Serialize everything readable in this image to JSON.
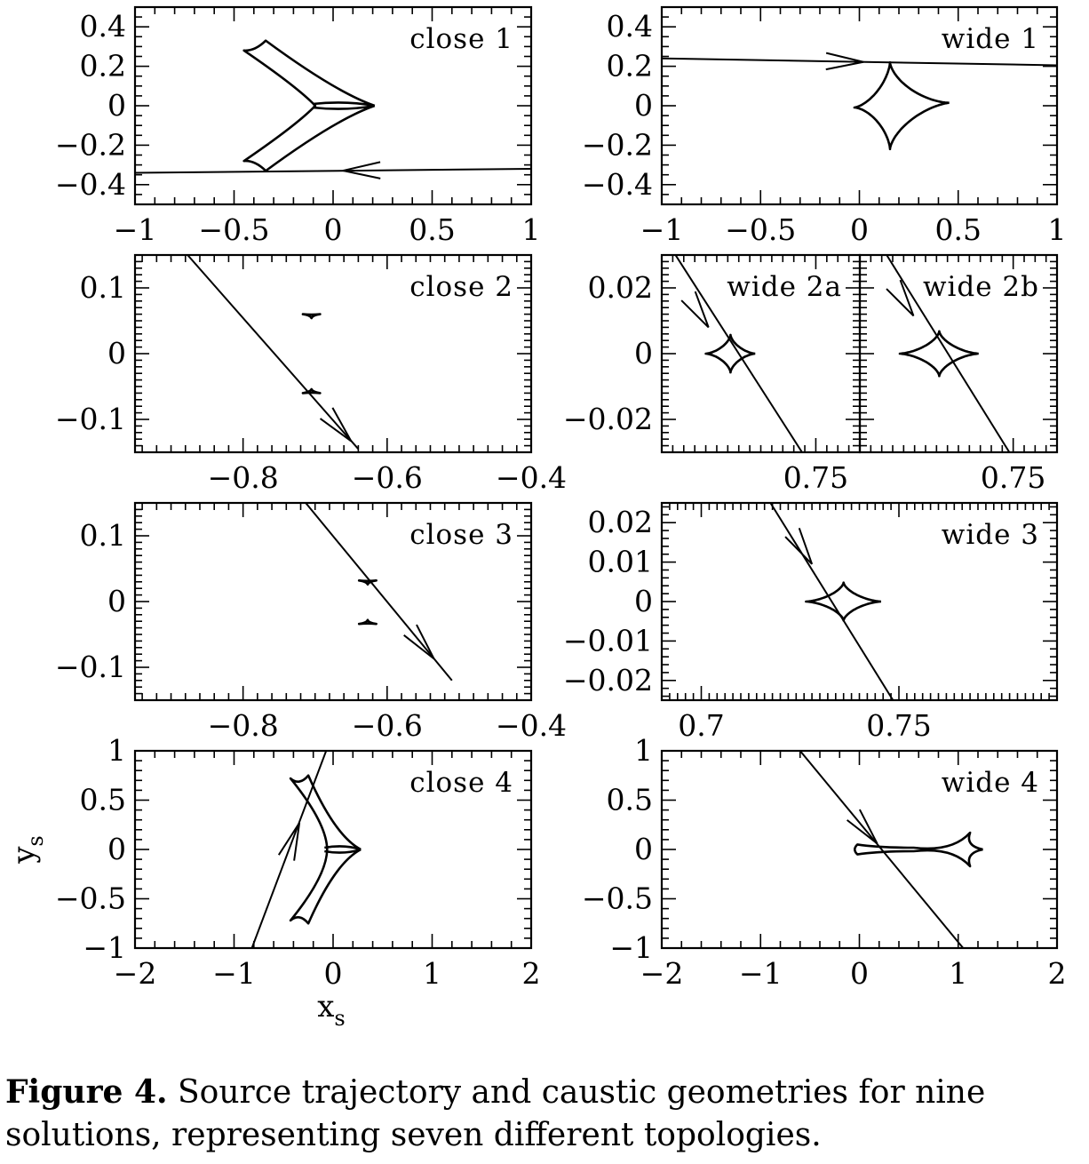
{
  "chart_data": [
    {
      "type": "line",
      "label": "close 1",
      "xlim": [
        -1,
        1
      ],
      "ylim": [
        -0.5,
        0.5
      ],
      "xticks": [
        -1,
        -0.5,
        0,
        0.5,
        1
      ],
      "xtick_labels": [
        "−1",
        "−0.5",
        "0",
        "0.5",
        "1"
      ],
      "yticks": [
        0.4,
        0.2,
        0,
        -0.2,
        -0.4
      ],
      "ytick_labels": [
        "0.4",
        "0.2",
        "0",
        "−0.2",
        "−0.4"
      ],
      "xminor": 0.1,
      "yminor": 0.05,
      "caustic_type": "six-cusp",
      "caustics": [
        {
          "cusps": [
            [
              0.21,
              0
            ],
            [
              -0.09,
              0
            ],
            [
              -0.34,
              0.33
            ],
            [
              -0.45,
              0.28
            ],
            [
              -0.45,
              -0.28
            ],
            [
              -0.34,
              -0.33
            ]
          ],
          "lobes": "close-central",
          "deltas": [
            0.0,
            0.02
          ]
        }
      ],
      "trajectory": {
        "x0": 1,
        "y0": -0.32,
        "x1": -1,
        "y1": -0.34
      },
      "arrows": [
        {
          "at": [
            0.05,
            -0.329
          ],
          "dir": [
            -1,
            -0.01
          ]
        }
      ]
    },
    {
      "type": "line",
      "label": "wide 1",
      "xlim": [
        -1,
        1
      ],
      "ylim": [
        -0.5,
        0.5
      ],
      "xticks": [
        -1,
        -0.5,
        0,
        0.5,
        1
      ],
      "xtick_labels": [
        "−1",
        "−0.5",
        "0",
        "0.5",
        "1"
      ],
      "yticks": [
        0.4,
        0.2,
        0,
        -0.2,
        -0.4
      ],
      "ytick_labels": [
        "0.4",
        "0.2",
        "0",
        "−0.2",
        "−0.4"
      ],
      "xminor": 0.1,
      "yminor": 0.05,
      "caustic_type": "astroid",
      "caustics": [
        {
          "center": [
            0.155,
            0
          ],
          "right": 0.3,
          "left": 0.18,
          "top": 0.22,
          "bottom": 0.22,
          "tilt": 0.05
        }
      ],
      "trajectory": {
        "x0": -1,
        "y0": 0.24,
        "x1": 1,
        "y1": 0.205
      },
      "arrows": [
        {
          "at": [
            0.02,
            0.222
          ],
          "dir": [
            1,
            -0.02
          ]
        }
      ]
    },
    {
      "type": "line",
      "label": "close 2",
      "xlim": [
        -0.95,
        -0.4
      ],
      "ylim": [
        -0.15,
        0.15
      ],
      "xticks": [
        -0.8,
        -0.6,
        -0.4
      ],
      "xtick_labels": [
        "−0.8",
        "−0.6",
        "−0.4"
      ],
      "yticks": [
        0.1,
        0,
        -0.1
      ],
      "ytick_labels": [
        "0.1",
        "0",
        "−0.1"
      ],
      "xminor": 0.02,
      "yminor": 0.01,
      "caustic_type": "small-triangles",
      "caustics": [
        {
          "center": [
            -0.705,
            0.06
          ],
          "w": 0.012,
          "h": 0.006,
          "flip": 1
        },
        {
          "center": [
            -0.705,
            -0.06
          ],
          "w": 0.012,
          "h": 0.006,
          "flip": -1
        }
      ],
      "trajectory": {
        "x0": -0.64,
        "y0": -0.145,
        "x1": -0.877,
        "y1": 0.15
      },
      "arrows": [
        {
          "at": [
            -0.65,
            -0.133
          ],
          "dir": [
            1,
            -1.24
          ]
        }
      ]
    },
    {
      "type": "line",
      "label": "close 3",
      "xlim": [
        -0.95,
        -0.4
      ],
      "ylim": [
        -0.15,
        0.15
      ],
      "xticks": [
        -0.8,
        -0.6,
        -0.4
      ],
      "xtick_labels": [
        "−0.8",
        "−0.6",
        "−0.4"
      ],
      "yticks": [
        0.1,
        0,
        -0.1
      ],
      "ytick_labels": [
        "0.1",
        "0",
        "−0.1"
      ],
      "xminor": 0.02,
      "yminor": 0.01,
      "caustic_type": "small-triangles",
      "caustics": [
        {
          "center": [
            -0.627,
            0.032
          ],
          "w": 0.012,
          "h": 0.006,
          "flip": 1
        },
        {
          "center": [
            -0.627,
            -0.034
          ],
          "w": 0.012,
          "h": 0.006,
          "flip": -1
        }
      ],
      "trajectory": {
        "x0": -0.51,
        "y0": -0.12,
        "x1": -0.713,
        "y1": 0.15
      },
      "arrows": [
        {
          "at": [
            -0.535,
            -0.087
          ],
          "dir": [
            1,
            -1.33
          ]
        }
      ]
    },
    {
      "type": "line",
      "label": "close 4",
      "xlim": [
        -2,
        2
      ],
      "ylim": [
        -1,
        1
      ],
      "xticks": [
        -2,
        -1,
        0,
        1,
        2
      ],
      "xtick_labels": [
        "−2",
        "−1",
        "0",
        "1",
        "2"
      ],
      "yticks": [
        1,
        0.5,
        0,
        -0.5,
        -1
      ],
      "ytick_labels": [
        "1",
        "0.5",
        "0",
        "−0.5",
        "−1"
      ],
      "xminor": 0.2,
      "yminor": 0.1,
      "xlabel": "x",
      "xlabel_sub": "s",
      "ylabel": "y",
      "ylabel_sub": "s",
      "caustic_type": "six-cusp",
      "caustics": [
        {
          "cusps": [
            [
              0.28,
              0
            ],
            [
              -0.06,
              0
            ],
            [
              -0.25,
              0.75
            ],
            [
              -0.43,
              0.72
            ],
            [
              -0.43,
              -0.72
            ],
            [
              -0.25,
              -0.75
            ]
          ],
          "lobes": "close-central",
          "deltas": [
            0.0,
            0.03
          ]
        }
      ],
      "trajectory": {
        "x0": -0.82,
        "y0": -1,
        "x1": -0.07,
        "y1": 1
      },
      "arrows": [
        {
          "at": [
            -0.34,
            0.27
          ],
          "dir": [
            0.37,
            1
          ]
        }
      ]
    },
    {
      "type": "line",
      "label": "wide 2a",
      "xlim": [
        0.722,
        0.758
      ],
      "ylim": [
        -0.03,
        0.03
      ],
      "xticks": [
        0.75
      ],
      "xtick_labels": [
        "0.75"
      ],
      "yticks": [
        0.02,
        0,
        -0.02
      ],
      "ytick_labels": [
        "0.02",
        "0",
        "−0.02"
      ],
      "xminor": 0.002,
      "yminor": 0.002,
      "caustic_type": "astroid",
      "caustics": [
        {
          "center": [
            0.7345,
            0
          ],
          "right": 0.0045,
          "left": 0.0045,
          "top": 0.0057,
          "bottom": 0.0057,
          "tilt": 0
        }
      ],
      "trajectory": {
        "x0": 0.7245,
        "y0": 0.03,
        "x1": 0.7475,
        "y1": -0.03
      },
      "arrows": [
        {
          "at": [
            0.7305,
            0.008
          ],
          "dir": [
            1,
            -2.6
          ]
        }
      ]
    },
    {
      "type": "line",
      "label": "wide 2b",
      "xlim": [
        0.722,
        0.758
      ],
      "ylim": [
        -0.03,
        0.03
      ],
      "xticks": [
        0.75
      ],
      "xtick_labels": [
        "0.75"
      ],
      "yticks": [],
      "ytick_labels": [],
      "xminor": 0.002,
      "yminor": 0.002,
      "caustic_type": "astroid",
      "caustics": [
        {
          "center": [
            0.7365,
            0
          ],
          "right": 0.0072,
          "left": 0.0072,
          "top": 0.0068,
          "bottom": 0.0068,
          "tilt": 0
        }
      ],
      "trajectory": {
        "x0": 0.7269,
        "y0": 0.03,
        "x1": 0.7493,
        "y1": -0.03
      },
      "arrows": [
        {
          "at": [
            0.7318,
            0.0115
          ],
          "dir": [
            1,
            -2.6
          ]
        }
      ]
    },
    {
      "type": "line",
      "label": "wide 3",
      "xlim": [
        0.69,
        0.79
      ],
      "ylim": [
        -0.025,
        0.025
      ],
      "xticks": [
        0.7,
        0.75
      ],
      "xtick_labels": [
        "0.7",
        "0.75"
      ],
      "yticks": [
        0.02,
        0.01,
        0,
        -0.01,
        -0.02
      ],
      "ytick_labels": [
        "0.02",
        "0.01",
        "0",
        "−0.01",
        "−0.02"
      ],
      "xminor": 0.002,
      "yminor": 0.002,
      "caustic_type": "astroid",
      "caustics": [
        {
          "center": [
            0.736,
            0
          ],
          "right": 0.0095,
          "left": 0.0095,
          "top": 0.0048,
          "bottom": 0.0048,
          "tilt": 0
        }
      ],
      "trajectory": {
        "x0": 0.7175,
        "y0": 0.025,
        "x1": 0.7485,
        "y1": -0.025
      },
      "arrows": [
        {
          "at": [
            0.728,
            0.0095
          ],
          "dir": [
            1,
            -1.61
          ]
        }
      ]
    },
    {
      "type": "line",
      "label": "wide 4",
      "xlim": [
        -2,
        2
      ],
      "ylim": [
        -1,
        1
      ],
      "xticks": [
        -2,
        -1,
        0,
        1,
        2
      ],
      "xtick_labels": [
        "−2",
        "−1",
        "0",
        "1",
        "2"
      ],
      "yticks": [
        1,
        0.5,
        0,
        -0.5,
        -1
      ],
      "ytick_labels": [
        "1",
        "0.5",
        "0",
        "−0.5",
        "−1"
      ],
      "xminor": 0.2,
      "yminor": 0.1,
      "caustic_type": "elongated",
      "caustics": [
        {
          "cusps": [
            [
              1.25,
              0
            ],
            [
              1.12,
              0.17
            ],
            [
              -0.02,
              0.05
            ],
            [
              -0.02,
              -0.05
            ],
            [
              1.12,
              -0.17
            ]
          ]
        }
      ],
      "trajectory": {
        "x0": -0.6,
        "y0": 1,
        "x1": 1.05,
        "y1": -1
      },
      "arrows": [
        {
          "at": [
            0.18,
            0.06
          ],
          "dir": [
            1,
            -1.21
          ]
        }
      ]
    }
  ],
  "caption": {
    "lead": "Figure 4.",
    "text": " Source trajectory and caustic geometries for nine solutions, representing seven different topologies."
  }
}
